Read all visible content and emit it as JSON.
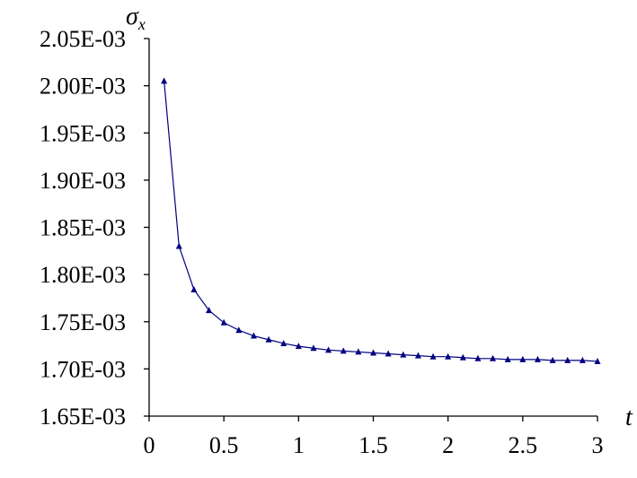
{
  "chart_data": {
    "type": "line",
    "xlabel": "t",
    "ylabel": "σ_x",
    "ylabel_main": "σ",
    "ylabel_sub": "x",
    "xlim": [
      0,
      3
    ],
    "ylim": [
      0.00165,
      0.00205
    ],
    "x_ticks": [
      0,
      0.5,
      1,
      1.5,
      2,
      2.5,
      3
    ],
    "x_tick_labels": [
      "0",
      "0.5",
      "1",
      "1.5",
      "2",
      "2.5",
      "3"
    ],
    "y_ticks": [
      0.00165,
      0.0017,
      0.00175,
      0.0018,
      0.00185,
      0.0019,
      0.00195,
      0.002,
      0.00205
    ],
    "y_tick_labels": [
      "1.65E-03",
      "1.70E-03",
      "1.75E-03",
      "1.80E-03",
      "1.85E-03",
      "1.90E-03",
      "1.95E-03",
      "2.00E-03",
      "2.05E-03"
    ],
    "grid": false,
    "legend": "none",
    "series": [
      {
        "color": "#000080",
        "marker": "triangle",
        "x": [
          0.1,
          0.2,
          0.3,
          0.4,
          0.5,
          0.6,
          0.7,
          0.8,
          0.9,
          1.0,
          1.1,
          1.2,
          1.3,
          1.4,
          1.5,
          1.6,
          1.7,
          1.8,
          1.9,
          2.0,
          2.1,
          2.2,
          2.3,
          2.4,
          2.5,
          2.6,
          2.7,
          2.8,
          2.9,
          3.0
        ],
        "y": [
          0.002005,
          0.00183,
          0.001784,
          0.001762,
          0.001749,
          0.001741,
          0.001735,
          0.001731,
          0.001727,
          0.001724,
          0.001722,
          0.00172,
          0.001719,
          0.001718,
          0.001717,
          0.001716,
          0.001715,
          0.001714,
          0.001713,
          0.001713,
          0.001712,
          0.001711,
          0.001711,
          0.00171,
          0.00171,
          0.00171,
          0.001709,
          0.001709,
          0.001709,
          0.001708
        ]
      }
    ]
  }
}
